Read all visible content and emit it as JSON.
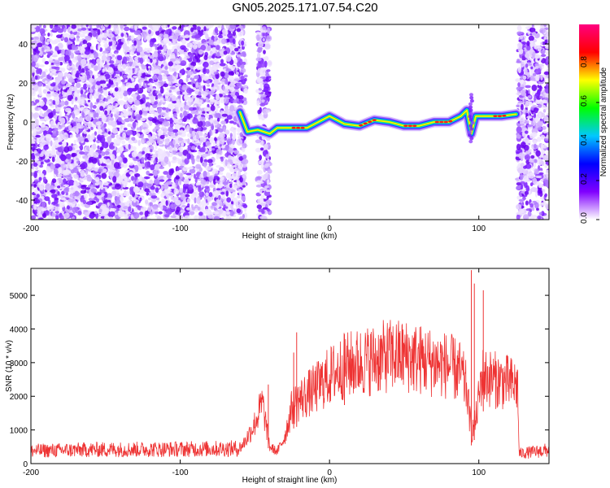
{
  "title": "GN05.2025.171.07.54.C20",
  "chart_data": [
    {
      "type": "heatmap",
      "xlabel": "Height of straight line (km)",
      "ylabel": "Frequency (Hz)",
      "xlim": [
        -200,
        147
      ],
      "ylim": [
        -50,
        50
      ],
      "xticks": [
        -200,
        -100,
        0,
        100
      ],
      "yticks": [
        -40,
        -20,
        0,
        20,
        40
      ],
      "colorbar": {
        "label": "Normalized spectral amplitude",
        "range": [
          0,
          1
        ],
        "ticks": [
          "0.0",
          "0.2",
          "0.4",
          "0.6",
          "0.8"
        ],
        "colors": [
          "#ffffff",
          "#8000ff",
          "#0000ff",
          "#00c8ff",
          "#00ff00",
          "#ffff00",
          "#ff0000",
          "#ff0080"
        ]
      },
      "noise_regions": [
        [
          -200,
          -56
        ],
        [
          -48,
          -40
        ],
        [
          126,
          147
        ]
      ],
      "signal_track": {
        "x": [
          -60,
          -55,
          -48,
          -40,
          -35,
          -25,
          -15,
          -5,
          0,
          10,
          20,
          30,
          40,
          50,
          60,
          70,
          80,
          88,
          92,
          95,
          98,
          105,
          115,
          125
        ],
        "y": [
          5,
          -5,
          -4,
          -6,
          -3,
          -3,
          -3,
          1,
          3,
          -1,
          -2,
          1,
          0,
          -2,
          -2,
          0,
          0,
          3,
          6,
          -6,
          3,
          3,
          3,
          4
        ]
      }
    },
    {
      "type": "line",
      "xlabel": "Height of straight line (km)",
      "ylabel": "SNR (10 * v/v)",
      "xlim": [
        -200,
        147
      ],
      "ylim": [
        0,
        5800
      ],
      "xticks": [
        -200,
        -100,
        0,
        100
      ],
      "yticks": [
        0,
        1000,
        2000,
        3000,
        4000,
        5000
      ],
      "color": "#ee3333",
      "envelope": {
        "x": [
          -200,
          -150,
          -100,
          -60,
          -56,
          -50,
          -45,
          -40,
          -35,
          -30,
          -25,
          -20,
          -10,
          0,
          10,
          20,
          30,
          40,
          50,
          60,
          70,
          80,
          88,
          92,
          95,
          98,
          102,
          110,
          120,
          126,
          127,
          147
        ],
        "y": [
          380,
          420,
          430,
          450,
          700,
          1200,
          1800,
          500,
          350,
          800,
          1700,
          1900,
          2200,
          2600,
          2900,
          3000,
          3100,
          3200,
          3200,
          3100,
          3000,
          2900,
          2700,
          2200,
          900,
          1300,
          2600,
          2500,
          2400,
          2300,
          300,
          400
        ]
      },
      "spikes": [
        {
          "x": -41,
          "y": 2350
        },
        {
          "x": -24,
          "y": 3300
        },
        {
          "x": -22,
          "y": 3900
        },
        {
          "x": 10,
          "y": 3850
        },
        {
          "x": 95,
          "y": 5750
        },
        {
          "x": 97,
          "y": 5350
        },
        {
          "x": 103,
          "y": 5150
        }
      ]
    }
  ]
}
